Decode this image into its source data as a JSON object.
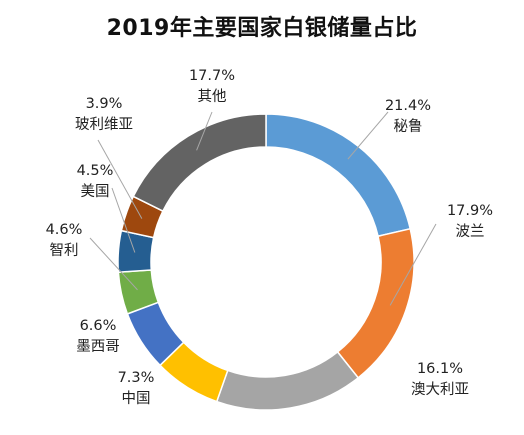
{
  "chart_data": {
    "type": "pie",
    "title": "2019年主要国家白银储量占比",
    "donut": true,
    "slices": [
      {
        "name": "秘鲁",
        "percent_label": "21.4%",
        "value": 21.4,
        "color": "#5B9BD5"
      },
      {
        "name": "波兰",
        "percent_label": "17.9%",
        "value": 17.9,
        "color": "#ED7D31"
      },
      {
        "name": "澳大利亚",
        "percent_label": "16.1%",
        "value": 16.1,
        "color": "#A5A5A5"
      },
      {
        "name": "中国",
        "percent_label": "7.3%",
        "value": 7.3,
        "color": "#FFC000"
      },
      {
        "name": "墨西哥",
        "percent_label": "6.6%",
        "value": 6.6,
        "color": "#4472C4"
      },
      {
        "name": "智利",
        "percent_label": "4.6%",
        "value": 4.6,
        "color": "#70AD47"
      },
      {
        "name": "美国",
        "percent_label": "4.5%",
        "value": 4.5,
        "color": "#255E91"
      },
      {
        "name": "玻利维亚",
        "percent_label": "3.9%",
        "value": 3.9,
        "color": "#9E480E"
      },
      {
        "name": "其他",
        "percent_label": "17.7%",
        "value": 17.7,
        "color": "#636363"
      }
    ]
  }
}
